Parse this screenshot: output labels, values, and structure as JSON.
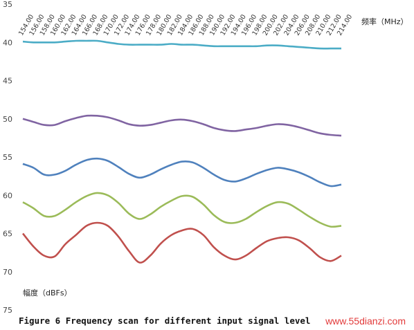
{
  "chart_data": {
    "type": "line",
    "title": "",
    "caption": "Figure 6 Frequency scan for different input signal level",
    "xlabel": "频率（MHz）",
    "ylabel": "幅度（dBFs）",
    "y_ticks": [
      "35",
      "40",
      "45",
      "50",
      "55",
      "60",
      "65",
      "70",
      "75"
    ],
    "ylim": [
      -75,
      -35
    ],
    "xlim": [
      154,
      214
    ],
    "x_ticks": [
      "154.00",
      "156.00",
      "158.00",
      "160.00",
      "162.00",
      "164.00",
      "166.00",
      "168.00",
      "170.00",
      "172.00",
      "174.00",
      "176.00",
      "178.00",
      "180.00",
      "182.00",
      "184.00",
      "186.00",
      "188.00",
      "190.00",
      "192.00",
      "194.00",
      "196.00",
      "198.00",
      "200.00",
      "202.00",
      "204.00",
      "206.00",
      "208.00",
      "210.00",
      "212.00",
      "214.00"
    ],
    "x": [
      154,
      156,
      158,
      160,
      162,
      164,
      166,
      168,
      170,
      172,
      174,
      176,
      178,
      180,
      182,
      184,
      186,
      188,
      190,
      192,
      194,
      196,
      198,
      200,
      202,
      204,
      206,
      208,
      210,
      212,
      214
    ],
    "grid": false,
    "legend": "none",
    "series": [
      {
        "color": "#4bacc6",
        "values": [
          -39.9,
          -40.0,
          -40.0,
          -40.0,
          -39.9,
          -39.8,
          -39.8,
          -39.8,
          -40.0,
          -40.2,
          -40.3,
          -40.3,
          -40.3,
          -40.3,
          -40.2,
          -40.3,
          -40.3,
          -40.4,
          -40.5,
          -40.5,
          -40.5,
          -40.5,
          -40.5,
          -40.4,
          -40.4,
          -40.5,
          -40.6,
          -40.7,
          -40.8,
          -40.8,
          -40.8
        ]
      },
      {
        "color": "#8064a2",
        "values": [
          -50.0,
          -50.4,
          -50.8,
          -50.8,
          -50.3,
          -49.9,
          -49.6,
          -49.6,
          -49.8,
          -50.2,
          -50.7,
          -50.9,
          -50.8,
          -50.5,
          -50.2,
          -50.1,
          -50.3,
          -50.7,
          -51.2,
          -51.5,
          -51.6,
          -51.4,
          -51.2,
          -50.9,
          -50.7,
          -50.8,
          -51.1,
          -51.5,
          -51.9,
          -52.1,
          -52.2
        ]
      },
      {
        "color": "#4f81bd",
        "values": [
          -55.9,
          -56.4,
          -57.3,
          -57.3,
          -56.8,
          -56.0,
          -55.4,
          -55.2,
          -55.5,
          -56.3,
          -57.2,
          -57.7,
          -57.3,
          -56.6,
          -56.0,
          -55.6,
          -55.7,
          -56.4,
          -57.3,
          -58.0,
          -58.2,
          -57.8,
          -57.2,
          -56.7,
          -56.4,
          -56.6,
          -57.0,
          -57.6,
          -58.3,
          -58.8,
          -58.6
        ]
      },
      {
        "color": "#9bbb59",
        "values": [
          -60.9,
          -61.7,
          -62.7,
          -62.7,
          -61.9,
          -60.9,
          -60.1,
          -59.7,
          -60.0,
          -61.0,
          -62.4,
          -63.1,
          -62.5,
          -61.5,
          -60.7,
          -60.1,
          -60.2,
          -61.2,
          -62.6,
          -63.5,
          -63.6,
          -63.1,
          -62.2,
          -61.4,
          -60.9,
          -61.1,
          -61.9,
          -62.8,
          -63.6,
          -64.1,
          -64.0
        ]
      },
      {
        "color": "#c0504d",
        "values": [
          -65.0,
          -66.7,
          -67.9,
          -68.0,
          -66.4,
          -65.2,
          -64.0,
          -63.6,
          -64.0,
          -65.4,
          -67.3,
          -68.8,
          -67.9,
          -66.3,
          -65.2,
          -64.6,
          -64.4,
          -65.2,
          -66.8,
          -67.9,
          -68.4,
          -67.9,
          -66.9,
          -66.0,
          -65.6,
          -65.5,
          -65.9,
          -66.9,
          -68.1,
          -68.6,
          -67.9
        ]
      }
    ]
  },
  "watermark": "www.55dianzi.com"
}
